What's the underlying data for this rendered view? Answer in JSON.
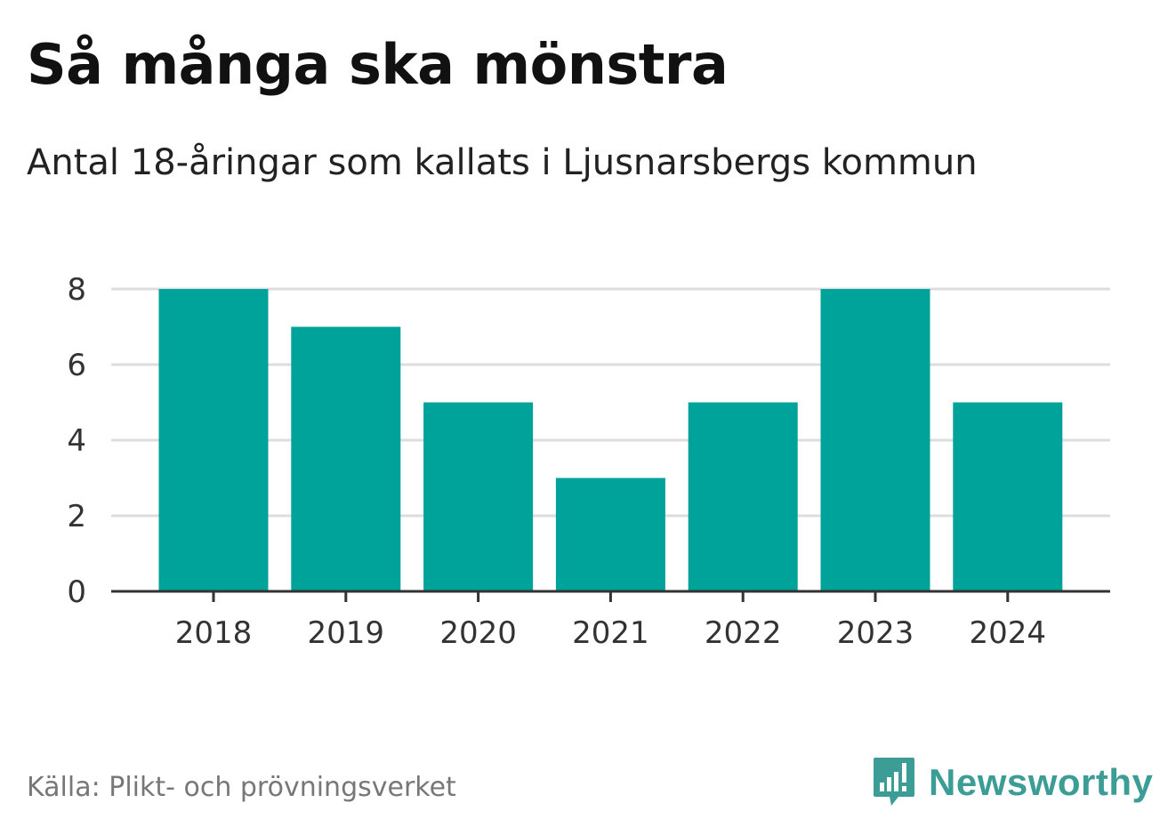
{
  "header": {
    "title": "Så många ska mönstra",
    "subtitle": "Antal 18-åringar som kallats i Ljusnarsbergs kommun"
  },
  "footer": {
    "source": "Källa: Plikt- och prövningsverket",
    "brand": "Newsworthy",
    "brand_icon": "newsworthy-logo-icon",
    "brand_color": "#3c9d97"
  },
  "chart_data": {
    "type": "bar",
    "title": "Så många ska mönstra",
    "subtitle": "Antal 18-åringar som kallats i Ljusnarsbergs kommun",
    "categories": [
      "2018",
      "2019",
      "2020",
      "2021",
      "2022",
      "2023",
      "2024"
    ],
    "values": [
      8,
      7,
      5,
      3,
      5,
      8,
      5
    ],
    "xlabel": "",
    "ylabel": "",
    "ylim": [
      0,
      8
    ],
    "yticks": [
      0,
      2,
      4,
      6,
      8
    ],
    "grid": true,
    "bar_color": "#00a39a"
  }
}
